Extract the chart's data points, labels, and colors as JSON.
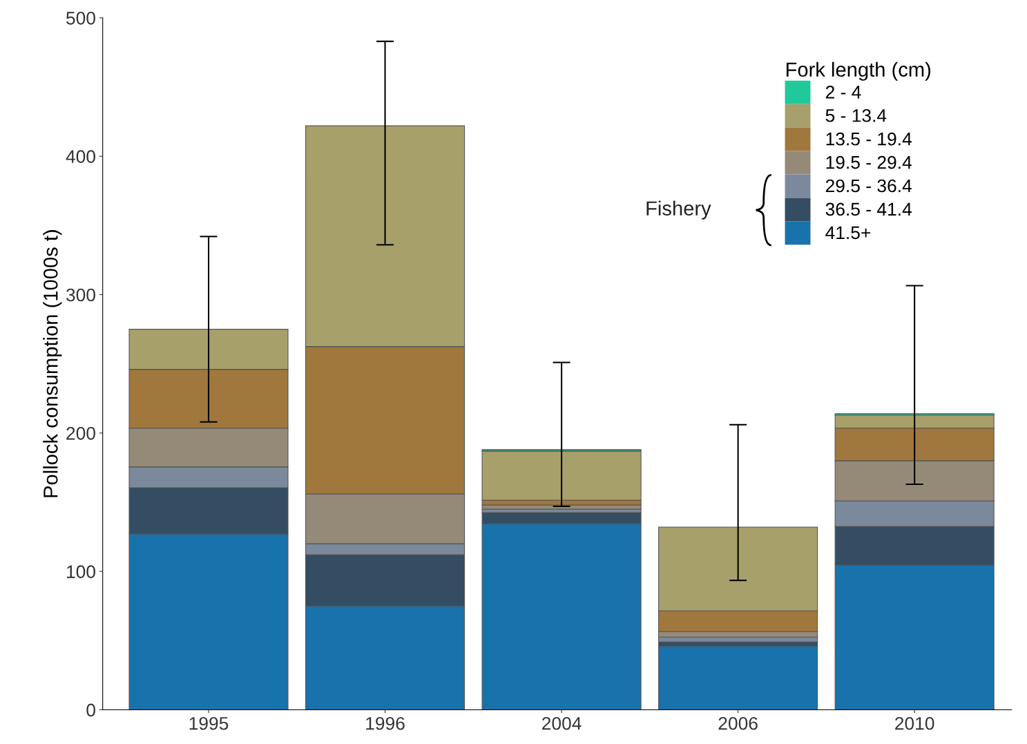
{
  "chart_data": {
    "type": "bar",
    "stacked": true,
    "ylabel": "Pollock consumption (1000s t)",
    "legend_title": "Fork length (cm)",
    "legend": "top right",
    "grid": false,
    "categories": [
      "1995",
      "1996",
      "2004",
      "2006",
      "2010"
    ],
    "ylim": [
      0,
      500
    ],
    "yticks": [
      0,
      100,
      200,
      300,
      400,
      500
    ],
    "series": [
      {
        "name": "41.5+",
        "color": "#1872ab",
        "values": [
          127,
          75,
          134.5,
          46,
          104.5
        ]
      },
      {
        "name": "36.5 - 41.4",
        "color": "#344d63",
        "values": [
          33.5,
          37,
          8,
          3,
          28
        ]
      },
      {
        "name": "29.5 - 36.4",
        "color": "#7a8a9c",
        "values": [
          15,
          8,
          2.5,
          3.5,
          18.5
        ]
      },
      {
        "name": "19.5 - 29.4",
        "color": "#958a78",
        "values": [
          28,
          36,
          3,
          4,
          29
        ]
      },
      {
        "name": "13.5 - 19.4",
        "color": "#a0773c",
        "values": [
          42.5,
          106.5,
          3.5,
          15,
          23.5
        ]
      },
      {
        "name": "5 - 13.4",
        "color": "#a8a06a",
        "values": [
          29,
          159.5,
          35.5,
          60.5,
          9.5
        ]
      },
      {
        "name": "2 - 4",
        "color": "#20c99a",
        "values": [
          0,
          0,
          1,
          0,
          1
        ],
        "errors": [
          [
            208,
            342
          ],
          [
            336,
            483
          ],
          [
            147,
            251
          ],
          [
            93.5,
            206
          ],
          [
            163,
            306.5
          ]
        ]
      }
    ],
    "annotations": [
      "Fishery"
    ]
  }
}
